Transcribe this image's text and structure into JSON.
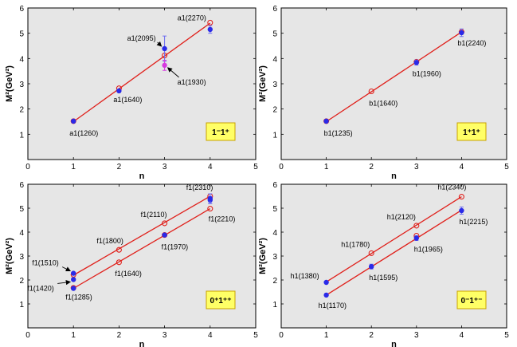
{
  "figure_title": "",
  "chart_data": [
    {
      "type": "scatter",
      "xlabel": "n",
      "ylabel": "M²(GeV²)",
      "xlim": [
        0,
        5
      ],
      "ylim": [
        0,
        6
      ],
      "xticks": [
        "0",
        "1",
        "2",
        "3",
        "4",
        "5"
      ],
      "yticks": [
        "1",
        "2",
        "3",
        "4",
        "5",
        "6"
      ],
      "badge": "1⁻1⁺",
      "badge_position": "lower-right",
      "fit_lines": [
        {
          "x": [
            1,
            4
          ],
          "y": [
            1.5,
            5.4
          ]
        }
      ],
      "predicted": {
        "x": [
          1,
          2,
          3,
          4
        ],
        "y": [
          1.52,
          2.82,
          4.12,
          5.42
        ]
      },
      "experimental": [
        {
          "x": 1,
          "y": 1.52,
          "err": 0
        },
        {
          "x": 2,
          "y": 2.72,
          "err": 0.05
        },
        {
          "x": 3,
          "y": 4.39,
          "err": 0.5
        },
        {
          "x": 4,
          "y": 5.15,
          "err": 0.15
        }
      ],
      "extra_points": [
        {
          "x": 3,
          "y": 3.73,
          "err": 0.2,
          "color": "#d63adf"
        }
      ],
      "labels": [
        "a1(1260)",
        "a1(1640)",
        "a1(2095)",
        "a1(1930)",
        "a1(2270)"
      ]
    },
    {
      "type": "scatter",
      "xlabel": "n",
      "ylabel": "M²(GeV²)",
      "xlim": [
        0,
        5
      ],
      "ylim": [
        0,
        6
      ],
      "xticks": [
        "0",
        "1",
        "2",
        "3",
        "4",
        "5"
      ],
      "yticks": [
        "1",
        "2",
        "3",
        "4",
        "5",
        "6"
      ],
      "badge": "1⁺1⁺",
      "badge_position": "lower-right",
      "fit_lines": [
        {
          "x": [
            1,
            4
          ],
          "y": [
            1.5,
            5.05
          ]
        }
      ],
      "predicted": {
        "x": [
          1,
          2,
          3,
          4
        ],
        "y": [
          1.52,
          2.7,
          3.87,
          5.05
        ]
      },
      "experimental": [
        {
          "x": 1,
          "y": 1.52,
          "err": 0
        },
        {
          "x": 3,
          "y": 3.84,
          "err": 0.1
        },
        {
          "x": 4,
          "y": 5.02,
          "err": 0.15
        }
      ],
      "extra_points": [],
      "labels": [
        "b1(1235)",
        "b1(1640)",
        "b1(1960)",
        "b1(2240)"
      ]
    },
    {
      "type": "scatter",
      "xlabel": "n",
      "ylabel": "M²(GeV²)",
      "xlim": [
        0,
        5
      ],
      "ylim": [
        0,
        6
      ],
      "xticks": [
        "0",
        "1",
        "2",
        "3",
        "4",
        "5"
      ],
      "yticks": [
        "1",
        "2",
        "3",
        "4",
        "5",
        "6"
      ],
      "badge": "0⁺1⁺⁺",
      "badge_position": "lower-right",
      "fit_lines": [
        {
          "x": [
            1,
            4
          ],
          "y": [
            2.2,
            5.5
          ]
        },
        {
          "x": [
            1,
            4
          ],
          "y": [
            1.65,
            4.98
          ]
        }
      ],
      "predicted": {
        "x": [
          1,
          2,
          3,
          4,
          1,
          2,
          3,
          4
        ],
        "y": [
          2.22,
          3.26,
          4.37,
          5.5,
          1.67,
          2.74,
          3.88,
          4.98
        ]
      },
      "experimental": [
        {
          "x": 1,
          "y": 2.28,
          "err": 0
        },
        {
          "x": 1,
          "y": 2.02,
          "err": 0
        },
        {
          "x": 1,
          "y": 1.65,
          "err": 0
        },
        {
          "x": 3,
          "y": 3.88,
          "err": 0.05
        },
        {
          "x": 4,
          "y": 5.34,
          "err": 0.15
        },
        {
          "x": 4,
          "y": 5.4,
          "err": 0.2
        }
      ],
      "extra_points": [],
      "labels": [
        "f1(1510)",
        "f1(1420)",
        "f1(1285)",
        "f1(1800)",
        "f1(1640)",
        "f1(2110)",
        "f1(1970)",
        "f1(2310)",
        "f1(2210)"
      ]
    },
    {
      "type": "scatter",
      "xlabel": "n",
      "ylabel": "M²(GeV²)",
      "xlim": [
        0,
        5
      ],
      "ylim": [
        0,
        6
      ],
      "xticks": [
        "0",
        "1",
        "2",
        "3",
        "4",
        "5"
      ],
      "yticks": [
        "1",
        "2",
        "3",
        "4",
        "5",
        "6"
      ],
      "badge": "0⁻1⁺⁻",
      "badge_position": "lower-right",
      "fit_lines": [
        {
          "x": [
            1,
            4
          ],
          "y": [
            1.92,
            5.48
          ]
        },
        {
          "x": [
            1,
            4
          ],
          "y": [
            1.37,
            4.92
          ]
        }
      ],
      "predicted": {
        "x": [
          2,
          3,
          4,
          3
        ],
        "y": [
          3.12,
          4.27,
          5.48,
          3.85
        ]
      },
      "experimental": [
        {
          "x": 1,
          "y": 1.9,
          "err": 0
        },
        {
          "x": 1,
          "y": 1.37,
          "err": 0
        },
        {
          "x": 2,
          "y": 2.56,
          "err": 0.1
        },
        {
          "x": 3,
          "y": 3.75,
          "err": 0.1
        },
        {
          "x": 4,
          "y": 4.9,
          "err": 0.15
        }
      ],
      "extra_points": [],
      "labels": [
        "h1(1380)",
        "h1(1170)",
        "h1(1780)",
        "h1(1595)",
        "h1(2120)",
        "h1(1965)",
        "h1(2340)",
        "h1(2215)"
      ]
    }
  ]
}
